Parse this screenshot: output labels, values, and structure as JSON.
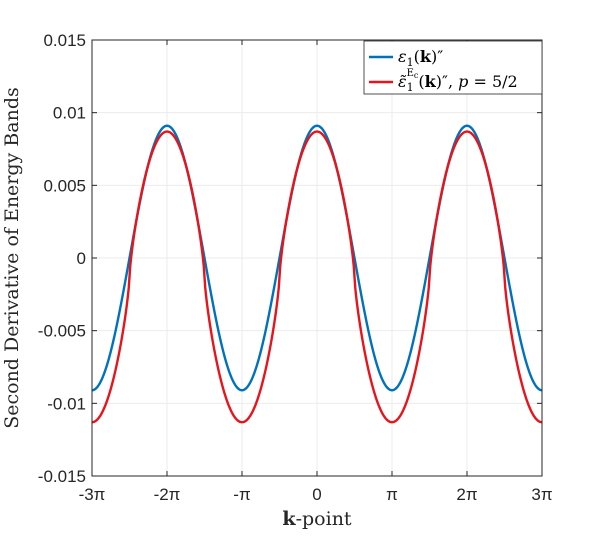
{
  "chart_data": {
    "type": "line",
    "title": "",
    "xlabel": "k-point",
    "xlabel_bold_part": "k",
    "xlabel_rest": "-point",
    "ylabel": "Second Derivative of Energy Bands",
    "xlim": [
      -9.42478,
      9.42478
    ],
    "ylim": [
      -0.015,
      0.015
    ],
    "x_ticks": [
      -9.42478,
      -6.28319,
      -3.14159,
      0,
      3.14159,
      6.28319,
      9.42478
    ],
    "x_tick_labels": [
      "-3π",
      "-2π",
      "-π",
      "0",
      "π",
      "2π",
      "3π"
    ],
    "y_ticks": [
      -0.015,
      -0.01,
      -0.005,
      0,
      0.005,
      0.01,
      0.015
    ],
    "y_tick_labels": [
      "-0.015",
      "-0.01",
      "-0.005",
      "0",
      "0.005",
      "0.01",
      "0.015"
    ],
    "grid": true,
    "legend_position": "top-right",
    "series": [
      {
        "name": "ε1(k)″",
        "color": "#0072BD",
        "model": "cosine",
        "offset": 0,
        "amplitude": 0.0091,
        "period": 6.28319,
        "sample_extrema": {
          "max_at_x_0": 0.0091,
          "min_at_x_pi": -0.0091
        }
      },
      {
        "name": "ε̃1^Ec(k)″, p = 5/2",
        "color": "#E8141B",
        "model": "flattened-cosine",
        "offset": -0.0013,
        "amplitude": 0.01,
        "shape_exponent": 0.75,
        "period": 6.28319,
        "sample_extrema": {
          "max_at_x_0": 0.0087,
          "min_at_x_pi": -0.0113
        }
      }
    ]
  }
}
